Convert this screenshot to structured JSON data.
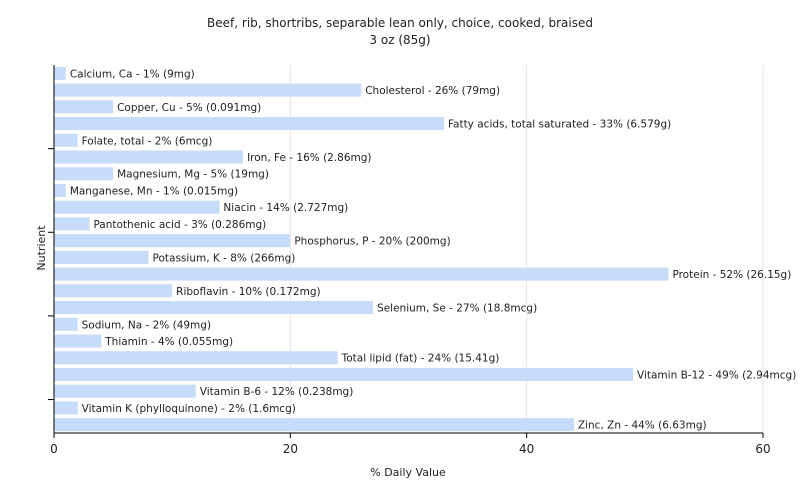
{
  "chart_data": {
    "type": "bar",
    "orientation": "horizontal",
    "title": "Beef, rib, shortribs, separable lean only, choice, cooked, braised",
    "subtitle": "3 oz (85g)",
    "xlabel": "% Daily Value",
    "ylabel": "Nutrient",
    "xlim": [
      0,
      60
    ],
    "xticks": [
      0,
      20,
      40,
      60
    ],
    "grid": true,
    "legend": "none",
    "bar_color": "#c6dcfa",
    "categories": [
      "Calcium, Ca",
      "Cholesterol",
      "Copper, Cu",
      "Fatty acids, total saturated",
      "Folate, total",
      "Iron, Fe",
      "Magnesium, Mg",
      "Manganese, Mn",
      "Niacin",
      "Pantothenic acid",
      "Phosphorus, P",
      "Potassium, K",
      "Protein",
      "Riboflavin",
      "Selenium, Se",
      "Sodium, Na",
      "Thiamin",
      "Total lipid (fat)",
      "Vitamin B-12",
      "Vitamin B-6",
      "Vitamin K (phylloquinone)",
      "Zinc, Zn"
    ],
    "values": [
      1,
      26,
      5,
      33,
      2,
      16,
      5,
      1,
      14,
      3,
      20,
      8,
      52,
      10,
      27,
      2,
      4,
      24,
      49,
      12,
      2,
      44
    ],
    "labels": [
      "Calcium, Ca - 1% (9mg)",
      "Cholesterol - 26% (79mg)",
      "Copper, Cu - 5% (0.091mg)",
      "Fatty acids, total saturated - 33% (6.579g)",
      "Folate, total - 2% (6mcg)",
      "Iron, Fe - 16% (2.86mg)",
      "Magnesium, Mg - 5% (19mg)",
      "Manganese, Mn - 1% (0.015mg)",
      "Niacin - 14% (2.727mg)",
      "Pantothenic acid - 3% (0.286mg)",
      "Phosphorus, P - 20% (200mg)",
      "Potassium, K - 8% (266mg)",
      "Protein - 52% (26.15g)",
      "Riboflavin - 10% (0.172mg)",
      "Selenium, Se - 27% (18.8mcg)",
      "Sodium, Na - 2% (49mg)",
      "Thiamin - 4% (0.055mg)",
      "Total lipid (fat) - 24% (15.41g)",
      "Vitamin B-12 - 49% (2.94mcg)",
      "Vitamin B-6 - 12% (0.238mg)",
      "Vitamin K (phylloquinone) - 2% (1.6mcg)",
      "Zinc, Zn - 44% (6.63mg)"
    ]
  }
}
